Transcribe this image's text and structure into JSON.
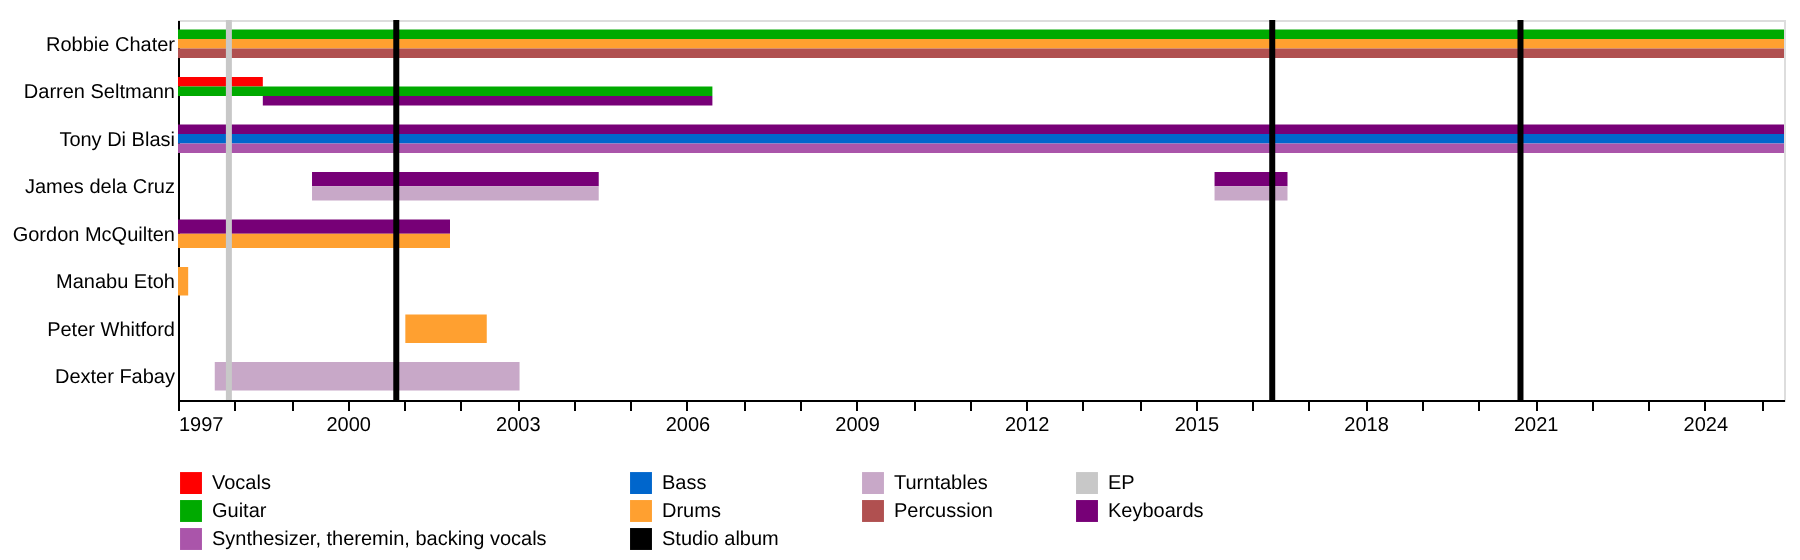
{
  "chart_data": {
    "type": "bar",
    "orientation": "horizontal",
    "categories": [
      "Robbie Chater",
      "Darren Seltmann",
      "Tony Di Blasi",
      "James dela Cruz",
      "Gordon McQuilten",
      "Manabu Etoh",
      "Peter Whitford",
      "Dexter Fabay"
    ],
    "series": [
      {
        "name": "Vocals",
        "color": "#ff0000",
        "base": [
          null,
          1997,
          null,
          null,
          null,
          null,
          null,
          null
        ],
        "values": [
          null,
          1.5,
          null,
          null,
          null,
          null,
          null,
          null
        ]
      },
      {
        "name": "Guitar",
        "color": "#00aa00",
        "base": [
          1997,
          1997,
          null,
          null,
          null,
          null,
          null,
          null
        ],
        "values": [
          28.4,
          9.45,
          null,
          null,
          null,
          null,
          null,
          null
        ]
      },
      {
        "name": "Keyboards",
        "color": "#770077",
        "base": [
          null,
          1998.5,
          1997,
          1999.37,
          1997,
          null,
          null,
          null
        ],
        "values": [
          null,
          7.95,
          28.4,
          5.07,
          4.81,
          null,
          null,
          null
        ]
      },
      {
        "color": "#770077",
        "base": [
          null,
          null,
          null,
          2015.33,
          null,
          null,
          null,
          null
        ],
        "values": [
          null,
          null,
          null,
          1.29,
          null,
          null,
          null,
          null
        ]
      },
      {
        "name": "Bass",
        "color": "#0066cc",
        "base": [
          null,
          null,
          1997,
          null,
          null,
          null,
          null,
          null
        ],
        "values": [
          null,
          null,
          28.4,
          null,
          null,
          null,
          null,
          null
        ]
      },
      {
        "name": "Drums",
        "color": "#ffa030",
        "base": [
          1997,
          null,
          null,
          null,
          1997,
          1997,
          2001.02,
          null
        ],
        "values": [
          28.4,
          null,
          null,
          null,
          4.81,
          0.18,
          1.44,
          null
        ]
      },
      {
        "name": "Synthesizer, theremin, backing vocals",
        "color": "#aa55aa",
        "base": [
          null,
          null,
          1997,
          null,
          null,
          null,
          null,
          null
        ],
        "values": [
          null,
          null,
          28.4,
          null,
          null,
          null,
          null,
          null
        ]
      },
      {
        "name": "Turntables",
        "color": "#c8a8c8",
        "base": [
          null,
          null,
          null,
          1999.37,
          null,
          null,
          null,
          1997.65
        ],
        "values": [
          null,
          null,
          null,
          5.07,
          null,
          null,
          null,
          5.39
        ]
      },
      {
        "color": "#c8a8c8",
        "base": [
          null,
          null,
          null,
          2015.33,
          null,
          null,
          null,
          null
        ],
        "values": [
          null,
          null,
          null,
          1.29,
          null,
          null,
          null,
          null
        ]
      },
      {
        "name": "Percussion",
        "color": "#b05050",
        "base": [
          1997,
          null,
          null,
          null,
          null,
          null,
          null,
          null
        ],
        "values": [
          28.4,
          null,
          null,
          null,
          null,
          null,
          null,
          null
        ]
      }
    ],
    "ref_lines": [
      {
        "axis": "x",
        "value": 2000.86,
        "label": "Studio album",
        "color": "#000000"
      },
      {
        "axis": "x",
        "value": 2016.35,
        "color": "#000000"
      },
      {
        "axis": "x",
        "value": 2020.74,
        "color": "#000000"
      },
      {
        "axis": "x",
        "value": 1997.9,
        "label": "EP",
        "color": "#c8c8c8"
      }
    ],
    "xlim": [
      1997,
      2025.4
    ],
    "xticks": [
      1997,
      {
        "value": 1998,
        "label": null
      },
      {
        "value": 1999,
        "label": null
      },
      2000,
      {
        "value": 2001,
        "label": null
      },
      {
        "value": 2002,
        "label": null
      },
      2003,
      {
        "value": 2004,
        "label": null
      },
      {
        "value": 2005,
        "label": null
      },
      2006,
      {
        "value": 2007,
        "label": null
      },
      {
        "value": 2008,
        "label": null
      },
      2009,
      {
        "value": 2010,
        "label": null
      },
      {
        "value": 2011,
        "label": null
      },
      2012,
      {
        "value": 2013,
        "label": null
      },
      {
        "value": 2014,
        "label": null
      },
      2015,
      {
        "value": 2016,
        "label": null
      },
      {
        "value": 2017,
        "label": null
      },
      2018,
      {
        "value": 2019,
        "label": null
      },
      {
        "value": 2020,
        "label": null
      },
      2021,
      {
        "value": 2022,
        "label": null
      },
      {
        "value": 2023,
        "label": null
      },
      2024,
      {
        "value": 2025,
        "label": null
      }
    ],
    "grid": false,
    "legend": "bottom"
  }
}
